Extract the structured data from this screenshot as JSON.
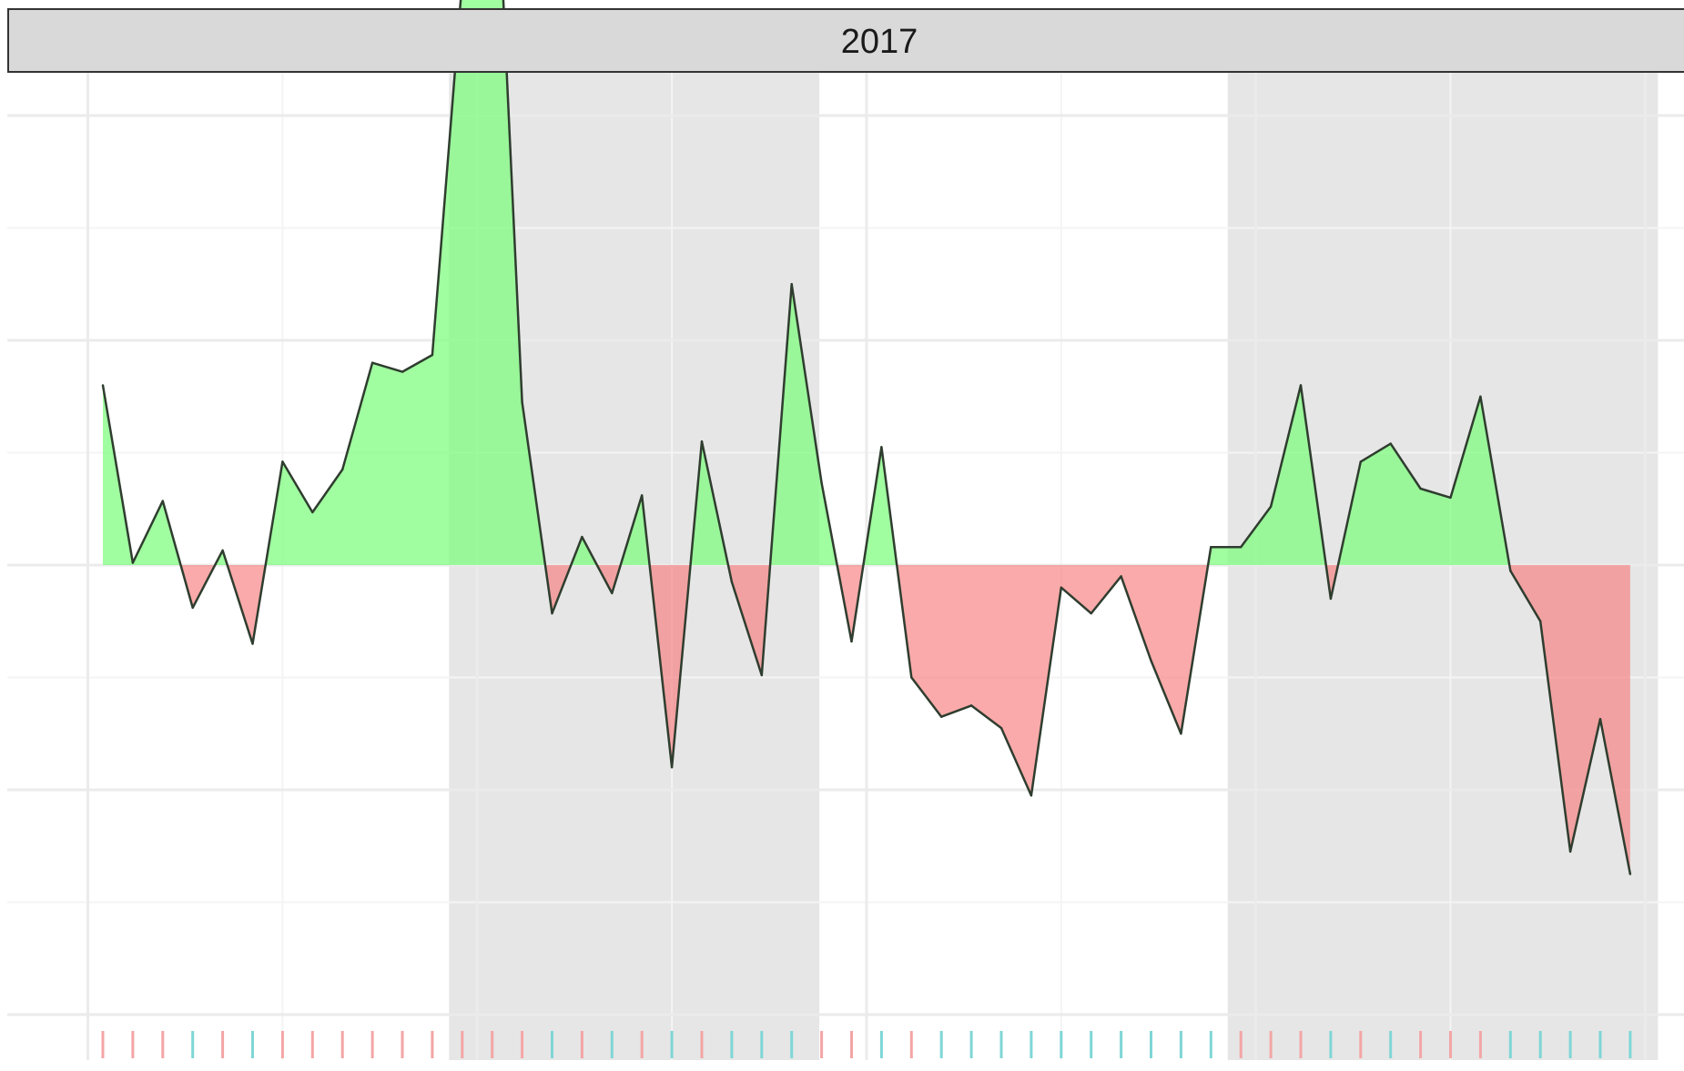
{
  "facet": {
    "label": "2017"
  },
  "colors": {
    "positive_fill": "#7cfc7c",
    "negative_fill": "#f87c7c",
    "line": "#2f3d2f",
    "shade": "#e6e6e6",
    "strip_bg": "#d9d9d9",
    "grid_major": "#ebebeb",
    "grid_minor": "#f4f4f4",
    "rug_up": "#f4a5a5",
    "rug_down": "#7fd6d6"
  },
  "chart_data": {
    "type": "area",
    "title": "",
    "xlabel": "",
    "ylabel": "",
    "baseline": 0,
    "ylim": [
      -4,
      4
    ],
    "xlim": [
      -0.5,
      52.5
    ],
    "grid": true,
    "legend": "none",
    "y_major_breaks": [
      -4,
      -2,
      0,
      2,
      4
    ],
    "y_minor_breaks": [
      -3,
      -1,
      1,
      3
    ],
    "x_major_breaks": [
      -0.5,
      12.5,
      25.5,
      38.5,
      51.5
    ],
    "x_minor_breaks": [
      6,
      19,
      32,
      45
    ],
    "shaded_periods": [
      [
        12,
        24
      ],
      [
        38,
        52
      ]
    ],
    "series": [
      {
        "values": [
          1.6,
          0.02,
          0.57,
          -0.38,
          0.13,
          -0.7,
          0.92,
          0.47,
          0.85,
          1.8,
          1.72,
          1.87,
          5.2,
          7.15,
          1.45,
          -0.43,
          0.25,
          -0.25,
          0.62,
          -1.8,
          1.1,
          -0.15,
          -0.98,
          2.5,
          0.73,
          -0.68,
          1.05,
          -1.0,
          -1.35,
          -1.25,
          -1.45,
          -2.05,
          -0.2,
          -0.43,
          -0.1,
          -0.85,
          -1.5,
          0.16,
          0.16,
          0.52,
          1.6,
          -0.3,
          0.92,
          1.08,
          0.68,
          0.6,
          1.5,
          -0.05,
          -0.5,
          -2.55,
          -1.37,
          -2.75
        ]
      }
    ],
    "rug_direction": [
      "up",
      "up",
      "up",
      "down",
      "up",
      "down",
      "up",
      "up",
      "up",
      "up",
      "up",
      "up",
      "up",
      "up",
      "up",
      "down",
      "up",
      "down",
      "up",
      "down",
      "up",
      "down",
      "down",
      "down",
      "up",
      "up",
      "down",
      "up",
      "down",
      "down",
      "down",
      "down",
      "down",
      "down",
      "down",
      "down",
      "down",
      "down",
      "up",
      "up",
      "up",
      "down",
      "up",
      "down",
      "up",
      "up",
      "up",
      "down",
      "down",
      "down",
      "down",
      "down"
    ]
  }
}
